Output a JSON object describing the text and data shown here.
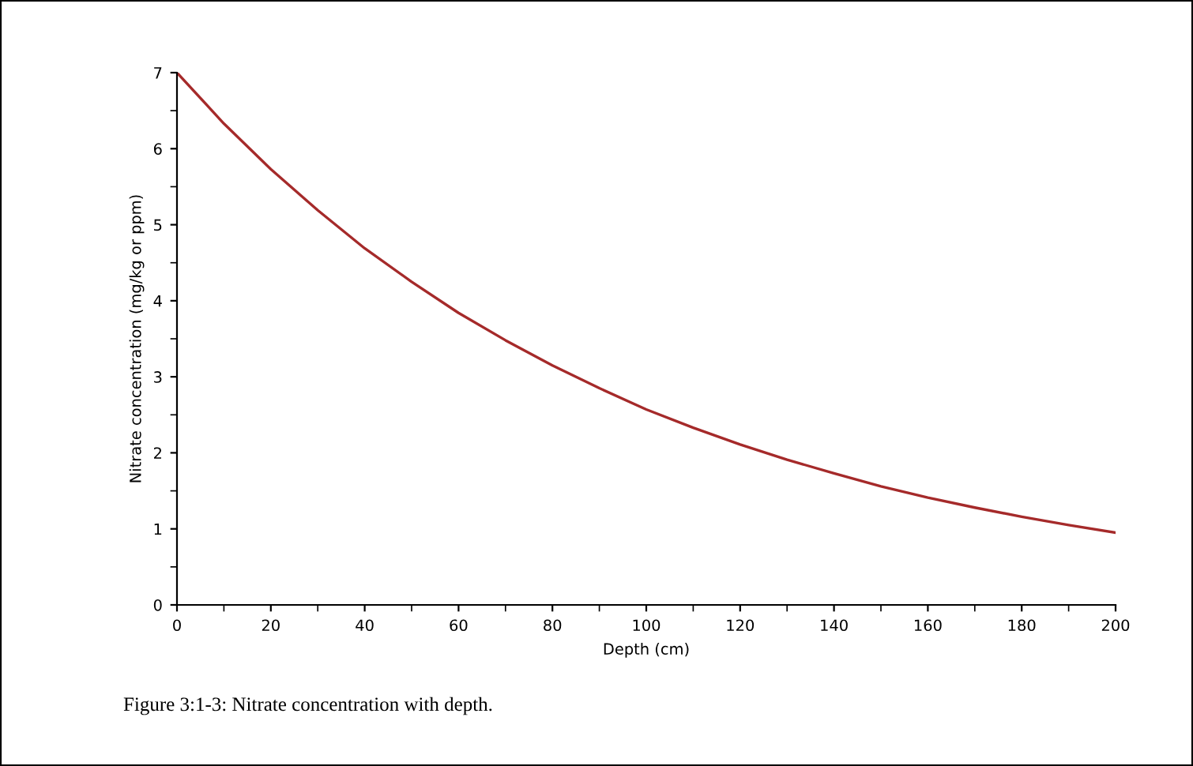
{
  "chart_data": {
    "type": "line",
    "xlabel": "Depth (cm)",
    "ylabel": "Nitrate concentration (mg/kg or ppm)",
    "x": [
      0,
      10,
      20,
      30,
      40,
      50,
      60,
      70,
      80,
      90,
      100,
      110,
      120,
      130,
      140,
      150,
      160,
      170,
      180,
      190,
      200
    ],
    "series": [
      {
        "color": "#a52a2a",
        "values": [
          7.0,
          6.33,
          5.73,
          5.19,
          4.69,
          4.25,
          3.84,
          3.48,
          3.15,
          2.85,
          2.57,
          2.33,
          2.11,
          1.91,
          1.73,
          1.56,
          1.41,
          1.28,
          1.16,
          1.05,
          0.95
        ]
      }
    ],
    "xlim": [
      0,
      200
    ],
    "xticks": [
      0,
      20,
      40,
      60,
      80,
      100,
      120,
      140,
      160,
      180,
      200
    ],
    "ylim": [
      0,
      7
    ],
    "yticks": [
      0,
      1,
      2,
      3,
      4,
      5,
      6,
      7
    ],
    "grid": false,
    "legend": false,
    "marker": "none",
    "line_style": "solid",
    "annotations": [
      "Figure 3:1-3: Nitrate concentration with depth."
    ]
  }
}
